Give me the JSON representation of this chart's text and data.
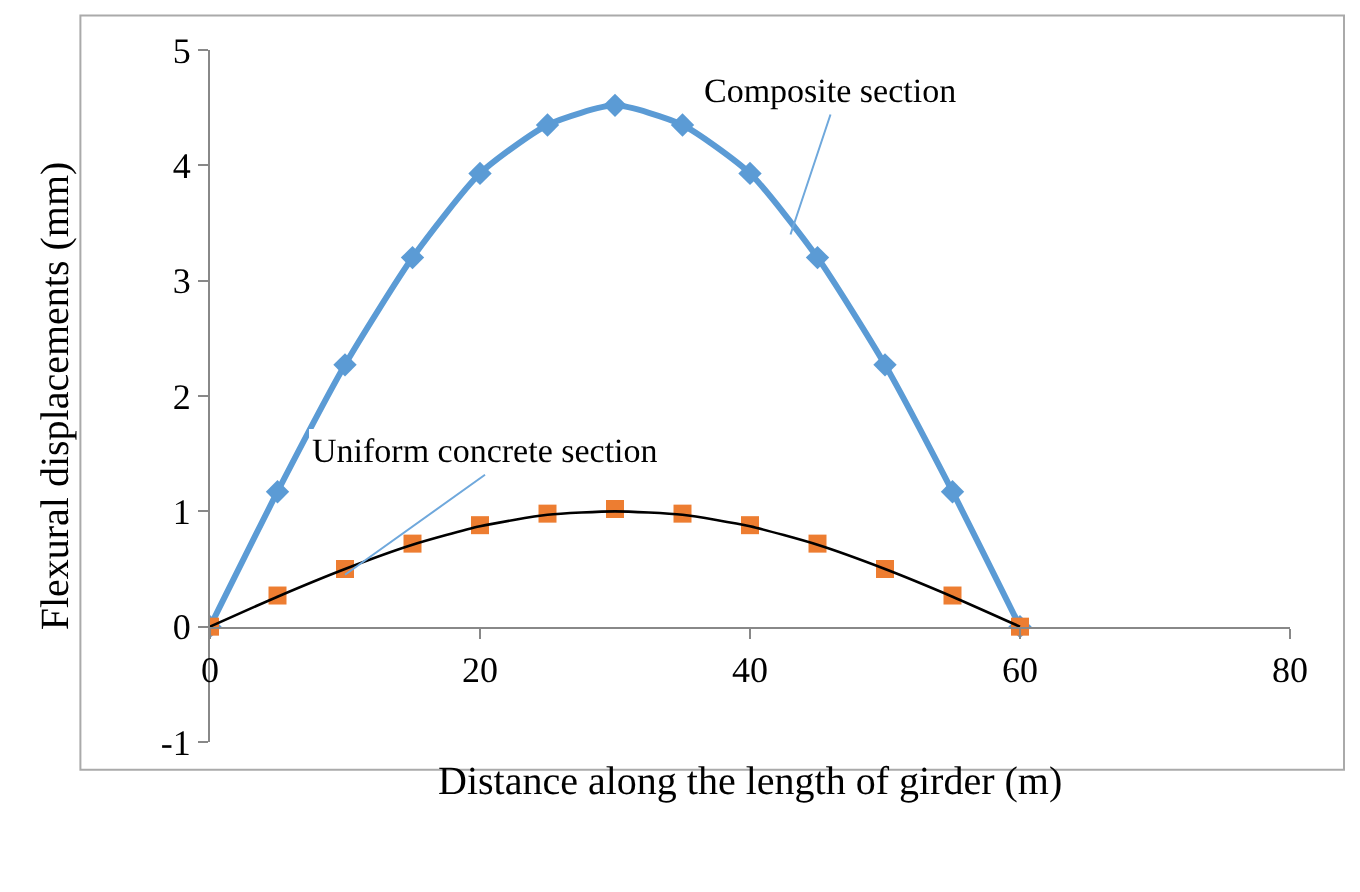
{
  "chart_data": {
    "type": "line",
    "xlabel": "Distance along the length of girder (m)",
    "ylabel": "Flexural displacements (mm)",
    "x": [
      0,
      5,
      10,
      15,
      20,
      25,
      30,
      35,
      40,
      45,
      50,
      55,
      60
    ],
    "series": [
      {
        "marker": "diamond",
        "color": "#5b9bd5",
        "values": [
          0,
          1.17,
          2.27,
          3.2,
          3.93,
          4.35,
          4.52,
          4.35,
          3.93,
          3.2,
          2.27,
          1.17,
          0
        ]
      },
      {
        "type": "scatter",
        "marker": "square",
        "color": "#ed7d31",
        "values": [
          0,
          0.27,
          0.5,
          0.72,
          0.88,
          0.98,
          1.02,
          0.98,
          0.88,
          0.72,
          0.5,
          0.27,
          0
        ]
      },
      {
        "marker": "none",
        "color": "#000000",
        "values": [
          0,
          0.26,
          0.5,
          0.71,
          0.87,
          0.97,
          1.0,
          0.97,
          0.87,
          0.71,
          0.5,
          0.26,
          0
        ]
      }
    ],
    "annotations": [
      {
        "text": "Composite section",
        "x": 43,
        "y": 3.4
      },
      {
        "text": "Uniform concrete section",
        "x": 10,
        "y": 0.45
      }
    ],
    "xlim": [
      0,
      80
    ],
    "xticks": [
      0,
      20,
      40,
      60,
      80
    ],
    "ylim": [
      -1,
      5
    ],
    "yticks": [
      -1,
      0,
      1,
      2,
      3,
      4,
      5
    ]
  }
}
